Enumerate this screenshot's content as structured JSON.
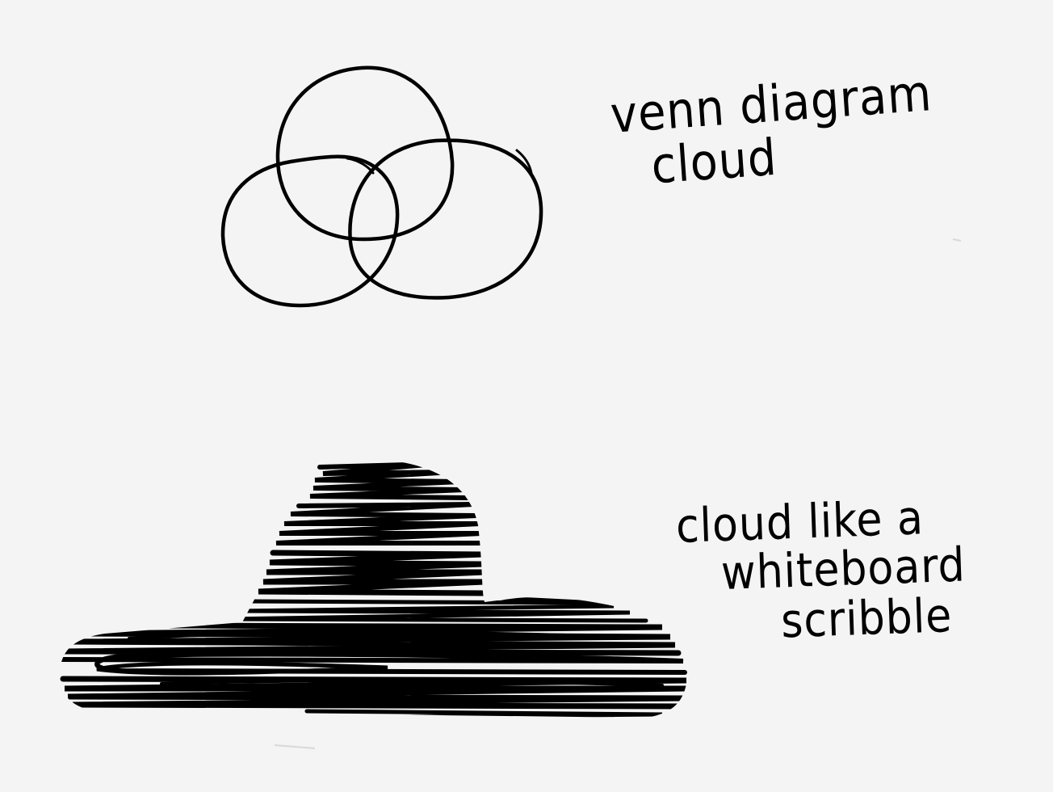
{
  "canvas": {
    "background": "#f4f4f4",
    "ink_color": "#000000"
  },
  "drawings": [
    {
      "kind": "venn-diagram-cloud",
      "circle_count": 3,
      "style": "outline"
    },
    {
      "kind": "scribble-cloud",
      "style": "filled-with-horizontal-scribble"
    }
  ],
  "notes": {
    "venn": {
      "line1": "venn diagram",
      "line2": "cloud"
    },
    "scribble": {
      "line1": "cloud like a",
      "line2": "whiteboard",
      "line3": "scribble"
    }
  }
}
